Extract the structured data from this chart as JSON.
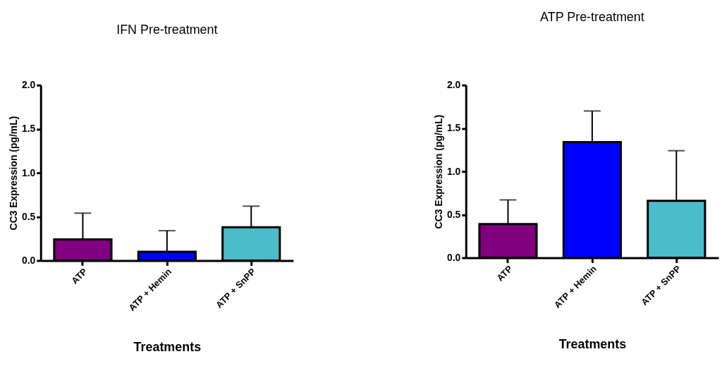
{
  "chart_data": [
    {
      "type": "bar",
      "title": "IFN Pre-treatment",
      "xlabel": "Treatments",
      "ylabel": "CC3 Expression (pg/mL)",
      "categories": [
        "ATP",
        "ATP + Hemin",
        "ATP + SnPP"
      ],
      "values": [
        0.24,
        0.1,
        0.38
      ],
      "colors": [
        "#800080",
        "#0000ff",
        "#4bbccc"
      ],
      "errors": [
        [
          0.24,
          0.54
        ],
        [
          0.1,
          0.34
        ],
        [
          0.38,
          0.62
        ]
      ],
      "ylim": [
        0,
        2.0
      ],
      "yticks": [
        {
          "value": 0,
          "label": "0.0"
        },
        {
          "value": 0.5,
          "label": "0.5"
        },
        {
          "value": 1,
          "label": "1.0"
        },
        {
          "value": 1.5,
          "label": "1.5"
        },
        {
          "value": 2,
          "label": "2.0"
        }
      ],
      "grid": false,
      "legend": false
    },
    {
      "type": "bar",
      "title": "ATP Pre-treatment",
      "xlabel": "Treatments",
      "ylabel": "CC3 Expression (pg/mL)",
      "categories": [
        "ATP",
        "ATP + Hemin",
        "ATP + SnPP"
      ],
      "values": [
        0.39,
        1.34,
        0.66
      ],
      "colors": [
        "#800080",
        "#0000ff",
        "#4bbccc"
      ],
      "errors": [
        [
          0.39,
          0.67
        ],
        [
          1.34,
          1.7
        ],
        [
          0.66,
          1.24
        ]
      ],
      "ylim": [
        0,
        2.0
      ],
      "yticks": [
        {
          "value": 0,
          "label": "0.0"
        },
        {
          "value": 0.5,
          "label": "0.5"
        },
        {
          "value": 1,
          "label": "1.0"
        },
        {
          "value": 1.5,
          "label": "1.5"
        },
        {
          "value": 2,
          "label": "2.0"
        }
      ],
      "grid": false,
      "legend": false
    }
  ]
}
